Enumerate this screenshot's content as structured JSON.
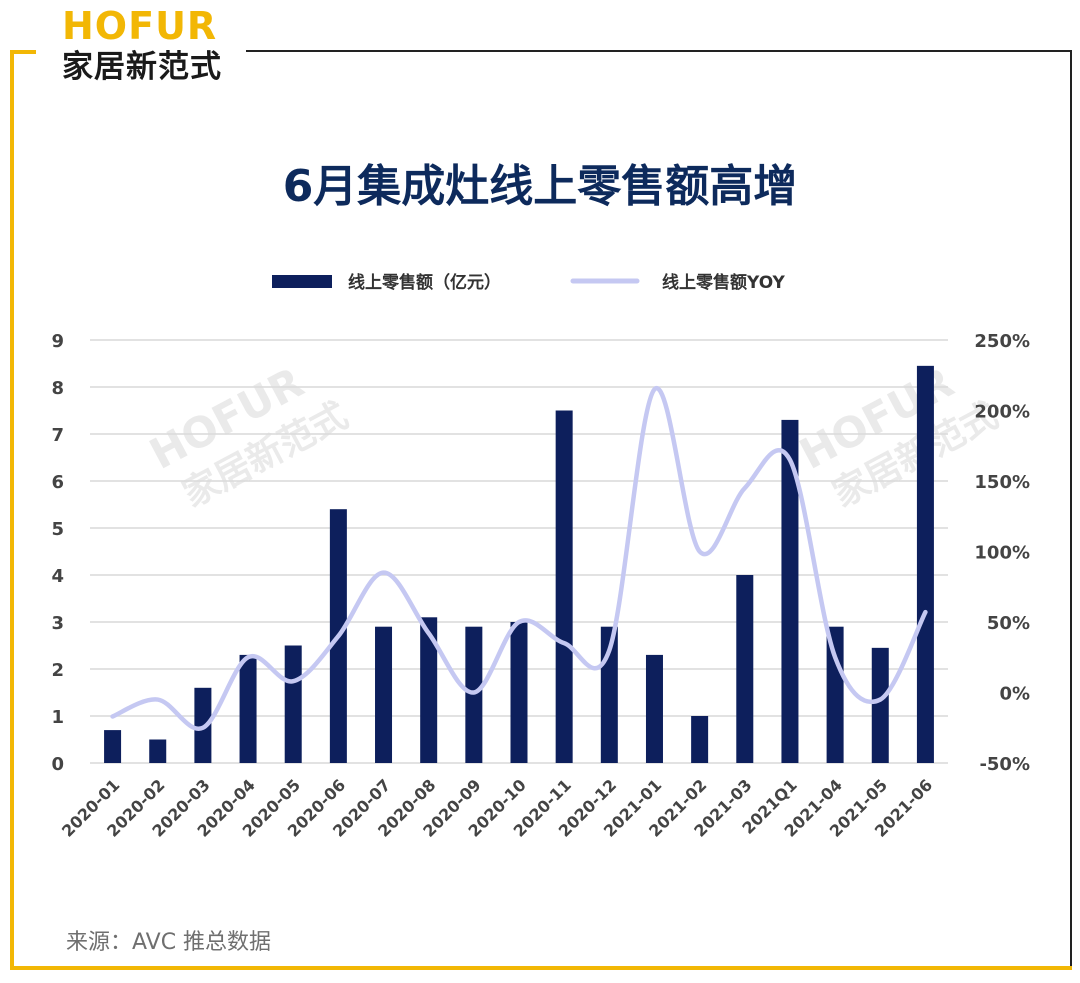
{
  "brand": {
    "name_en": "HOFUR",
    "name_cn": "家居新范式"
  },
  "source_note": "来源：AVC 推总数据",
  "colors": {
    "bar": "#0d1f5c",
    "line": "#c5c8f2",
    "title": "#0d2a5c",
    "accent": "#f2b705"
  },
  "chart_data": {
    "type": "bar",
    "title": "6月集成灶线上零售额高增",
    "categories": [
      "2020-01",
      "2020-02",
      "2020-03",
      "2020-04",
      "2020-05",
      "2020-06",
      "2020-07",
      "2020-08",
      "2020-09",
      "2020-10",
      "2020-11",
      "2020-12",
      "2021-01",
      "2021-02",
      "2021-03",
      "2021Q1",
      "2021-04",
      "2021-05",
      "2021-06"
    ],
    "series": [
      {
        "name": "线上零售额（亿元）",
        "type": "bar",
        "axis": "left",
        "values": [
          0.7,
          0.5,
          1.6,
          2.3,
          2.5,
          5.4,
          2.9,
          3.1,
          2.9,
          3.0,
          7.5,
          2.9,
          2.3,
          1.0,
          4.0,
          7.3,
          2.9,
          2.45,
          8.45
        ]
      },
      {
        "name": "线上零售额YOY",
        "type": "line",
        "axis": "right",
        "smooth": true,
        "values": [
          -17,
          -5,
          -25,
          25,
          8,
          40,
          85,
          42,
          0,
          50,
          35,
          30,
          215,
          100,
          145,
          165,
          25,
          -5,
          57
        ]
      }
    ],
    "yleft": {
      "ylim": [
        0,
        9
      ],
      "ticks": [
        "0",
        "1",
        "2",
        "3",
        "4",
        "5",
        "6",
        "7",
        "8",
        "9"
      ]
    },
    "yright": {
      "ylim": [
        -50,
        250
      ],
      "ticks": [
        "-50%",
        "0%",
        "50%",
        "100%",
        "150%",
        "200%",
        "250%"
      ]
    },
    "grid": true,
    "legend_position": "top-center"
  }
}
